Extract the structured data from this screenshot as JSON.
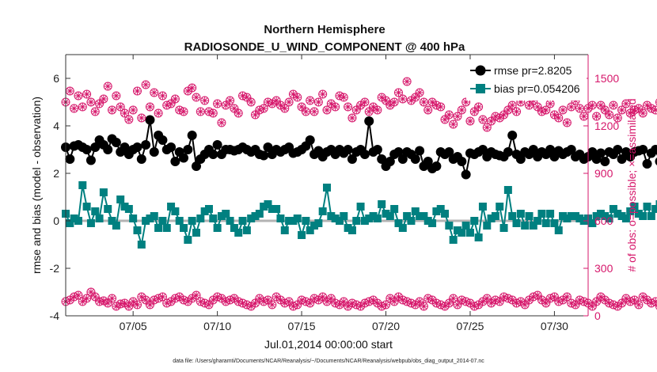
{
  "chart_data": {
    "type": "line",
    "title": "Northern Hemisphere",
    "subtitle": "RADIOSONDE_U_WIND_COMPONENT @ 400 hPa",
    "xlabel": "Jul.01,2014 00:00:00 start",
    "ylabel_left": "rmse and bias (model - observation)",
    "ylabel_right": "# of obs: o=possible; ×=assimilated",
    "xlim": [
      1,
      32
    ],
    "ylim_left": [
      -4,
      7
    ],
    "ylim_right": [
      0,
      1650
    ],
    "x_tick_labels": [
      "07/05",
      "07/10",
      "07/15",
      "07/20",
      "07/25",
      "07/30"
    ],
    "x_ticks": [
      5,
      10,
      15,
      20,
      25,
      30
    ],
    "y_left_ticks": [
      -4,
      -2,
      0,
      2,
      4,
      6
    ],
    "y_left_tick_labels": [
      "-4",
      "-2",
      "0",
      "2",
      "4",
      "6"
    ],
    "y_right_ticks": [
      0,
      300,
      600,
      900,
      1200,
      1500
    ],
    "y_right_tick_labels": [
      "0",
      "300",
      "600",
      "900",
      "1200",
      "1500"
    ],
    "legend": {
      "placement": "top-right",
      "entries": [
        "rmse pr=2.8205",
        "bias pr=0.054206"
      ]
    },
    "footnote": "data file: /Users/gharamti/Documents/NCAR/Reanalysis/~/Documents/NCAR/Reanalysis/webpub/obs_diag_output_2014-07.nc",
    "colors": {
      "rmse": "#000000",
      "bias": "#008080",
      "obs": "#d6176b",
      "zero_line": "#b3b3b3"
    },
    "x_start": 1.0,
    "x_step": 0.25,
    "series": [
      {
        "name": "rmse",
        "axis": "left",
        "values": [
          3.1,
          2.6,
          3.15,
          3.2,
          3.1,
          3.0,
          2.55,
          3.1,
          3.4,
          3.2,
          3.0,
          3.45,
          3.3,
          2.9,
          3.1,
          2.8,
          3.0,
          3.1,
          2.6,
          3.2,
          4.25,
          2.9,
          3.6,
          3.4,
          3.0,
          3.1,
          2.5,
          2.9,
          2.65,
          3.0,
          3.6,
          2.3,
          2.6,
          2.8,
          3.0,
          2.8,
          3.2,
          2.8,
          3.0,
          3.0,
          2.95,
          3.0,
          3.1,
          3.0,
          2.9,
          3.0,
          2.8,
          2.75,
          3.1,
          2.8,
          3.0,
          2.9,
          3.0,
          3.1,
          2.85,
          2.9,
          3.0,
          3.15,
          3.4,
          2.8,
          2.95,
          2.7,
          2.9,
          3.0,
          2.8,
          3.0,
          2.85,
          3.0,
          2.6,
          2.9,
          3.0,
          2.8,
          4.2,
          2.9,
          3.0,
          2.6,
          2.3,
          2.5,
          2.8,
          2.9,
          2.6,
          2.9,
          2.8,
          2.6,
          2.95,
          2.3,
          2.5,
          2.2,
          2.3,
          2.9,
          2.8,
          2.9,
          2.6,
          2.7,
          2.5,
          1.95,
          2.85,
          2.8,
          2.9,
          3.0,
          2.7,
          2.9,
          2.8,
          2.75,
          2.7,
          2.9,
          3.6,
          2.8,
          2.6,
          2.9,
          2.8,
          3.0,
          2.7,
          2.9,
          2.8,
          3.0,
          2.7,
          2.95,
          2.8,
          2.9,
          3.0,
          2.7,
          2.8,
          2.6,
          2.7,
          2.9,
          2.6,
          2.85,
          2.5,
          2.9,
          2.8,
          3.0,
          2.6,
          2.9,
          2.7,
          2.9,
          2.95,
          3.0,
          2.4,
          2.85,
          3.0,
          2.5,
          2.8,
          2.55,
          2.9,
          2.7,
          2.1,
          2.5,
          2.0,
          1.8,
          2.9,
          2.8,
          2.7,
          2.85,
          2.6,
          2.9,
          2.7,
          2.8,
          2.6,
          2.85,
          2.6,
          2.3,
          2.9,
          2.2,
          2.0,
          2.8,
          2.8,
          2.5,
          2.7,
          2.5,
          2.8,
          2.6,
          2.8,
          2.6,
          2.7,
          2.8,
          2.85
        ]
      },
      {
        "name": "bias",
        "axis": "left",
        "values": [
          0.3,
          -0.1,
          0.1,
          0.0,
          1.5,
          0.6,
          -0.1,
          0.4,
          0.1,
          1.2,
          0.5,
          0.0,
          -0.2,
          0.9,
          0.6,
          0.5,
          0.1,
          -0.4,
          -1.0,
          0.0,
          0.1,
          0.2,
          -0.3,
          0.0,
          -0.3,
          0.6,
          0.4,
          0.0,
          -0.3,
          -0.8,
          0.0,
          -0.5,
          0.1,
          0.4,
          0.5,
          0.1,
          -0.3,
          0.2,
          0.3,
          0.0,
          -0.3,
          -0.5,
          0.0,
          -0.4,
          0.1,
          0.2,
          0.3,
          0.6,
          0.7,
          0.5,
          0.5,
          0.1,
          -0.4,
          0.0,
          0.0,
          0.1,
          -0.6,
          0.0,
          -0.4,
          -0.2,
          -0.1,
          0.4,
          1.4,
          0.2,
          0.1,
          0.0,
          0.2,
          -0.3,
          -0.4,
          0.0,
          0.6,
          0.0,
          0.1,
          0.2,
          0.1,
          0.7,
          0.3,
          0.2,
          0.5,
          -0.1,
          -0.3,
          0.2,
          0.0,
          0.4,
          0.2,
          0.2,
          0.0,
          -0.1,
          0.4,
          0.5,
          0.3,
          -0.2,
          -0.8,
          -0.4,
          -0.5,
          -0.2,
          -0.5,
          0.0,
          -0.7,
          0.6,
          -0.2,
          0.1,
          0.2,
          0.6,
          -0.3,
          1.3,
          0.2,
          -0.1,
          0.3,
          -0.2,
          0.2,
          -0.2,
          0.0,
          0.3,
          -0.1,
          0.3,
          -0.1,
          -0.4,
          0.2,
          0.1,
          0.2,
          0.2,
          0.1,
          0.0,
          0.1,
          -0.1,
          0.2,
          0.3,
          0.2,
          0.1,
          0.5,
          0.3,
          0.2,
          0.1,
          0.4,
          0.6,
          0.3,
          0.2,
          0.6,
          0.2,
          0.5,
          0.7,
          0.1,
          0.3,
          0.2,
          0.5,
          0.1,
          0.5,
          0.1,
          0.0,
          0.3,
          0.1,
          0.2,
          0.1,
          0.1,
          0.0,
          -0.1,
          0.3,
          0.1,
          0.3,
          0.0,
          0.1,
          0.4,
          0.2,
          0.0,
          0.2,
          0.0,
          0.1,
          0.0,
          0.3,
          -0.2,
          0.2,
          -0.1,
          0.5,
          1.0
        ]
      },
      {
        "name": "obs possible",
        "axis": "right",
        "values": [
          1350,
          1420,
          1310,
          1390,
          1320,
          1400,
          1350,
          1290,
          1340,
          1370,
          1450,
          1300,
          1390,
          1320,
          1280,
          1240,
          1300,
          1420,
          1250,
          1460,
          1320,
          1410,
          1280,
          1390,
          1330,
          1340,
          1370,
          1300,
          1290,
          1420,
          1440,
          1380,
          1290,
          1360,
          1290,
          1280,
          1340,
          1220,
          1330,
          1360,
          1310,
          1280,
          1390,
          1380,
          1350,
          1270,
          1300,
          1310,
          1350,
          1340,
          1360,
          1330,
          1310,
          1350,
          1400,
          1380,
          1320,
          1290,
          1360,
          1290,
          1350,
          1400,
          1300,
          1340,
          1320,
          1390,
          1380,
          1320,
          1250,
          1300,
          1330,
          1350,
          1290,
          1320,
          1300,
          1380,
          1360,
          1330,
          1350,
          1410,
          1370,
          1480,
          1360,
          1380,
          1410,
          1350,
          1300,
          1350,
          1330,
          1320,
          1240,
          1270,
          1210,
          1260,
          1300,
          1350,
          1230,
          1290,
          1320,
          1240,
          1190,
          1230,
          1260,
          1250,
          1270,
          1300,
          1330,
          1290,
          1350,
          1410,
          1330,
          1360,
          1320,
          1290,
          1300,
          1340,
          1270,
          1250,
          1300,
          1220,
          1320,
          1360,
          1310,
          1260,
          1310,
          1330,
          1260,
          1330,
          1300,
          1270,
          1330,
          1250,
          1300,
          1340,
          1280,
          1300,
          1310,
          1280,
          1330,
          1310,
          1300,
          1350,
          1280,
          1320,
          1240,
          1260,
          1280,
          1330,
          1250,
          1280,
          1300,
          1270,
          1260,
          1320,
          1300,
          1330,
          1290,
          1310,
          1280,
          1310,
          1270,
          1330,
          1310,
          1340,
          1320,
          1290,
          1360,
          1290,
          1300,
          1310,
          1290,
          1310,
          1320,
          1290,
          1350,
          1330,
          1280,
          1320,
          1280,
          1250
        ],
        "marker": "circle-star"
      },
      {
        "name": "obs assimilated",
        "axis": "right",
        "values": [
          90,
          100,
          120,
          130,
          90,
          110,
          150,
          120,
          90,
          95,
          80,
          110,
          60,
          75,
          80,
          60,
          90,
          70,
          120,
          100,
          70,
          100,
          110,
          120,
          80,
          90,
          110,
          120,
          100,
          90,
          110,
          130,
          90,
          80,
          70,
          100,
          120,
          110,
          90,
          100,
          110,
          90,
          80,
          70,
          60,
          80,
          110,
          90,
          100,
          70,
          120,
          100,
          80,
          90,
          60,
          70,
          100,
          90,
          80,
          110,
          100,
          120,
          90,
          110,
          80,
          70,
          90,
          60,
          80,
          70,
          60,
          80,
          90,
          100,
          80,
          60,
          70,
          110,
          90,
          120,
          100,
          90,
          80,
          70,
          90,
          60,
          110,
          100,
          80,
          70,
          60,
          80,
          110,
          70,
          100,
          90,
          80,
          60,
          70,
          90,
          110,
          80,
          100,
          90,
          120,
          110,
          100,
          80,
          90,
          70,
          100,
          120,
          130,
          100,
          80,
          110,
          120,
          90,
          100,
          120,
          80,
          70,
          100,
          90,
          80,
          60,
          90,
          120,
          100,
          80,
          70,
          60,
          80,
          110,
          90,
          100,
          70,
          120,
          100,
          80,
          90,
          60,
          70,
          100,
          90,
          80,
          100,
          90,
          110,
          80,
          100,
          120,
          90,
          110,
          100,
          90,
          80,
          70,
          100,
          90,
          120,
          100,
          80,
          90,
          120,
          110,
          100,
          80,
          90,
          110,
          100,
          120,
          90,
          110,
          80,
          100,
          120
        ],
        "marker": "circle-star"
      }
    ]
  }
}
